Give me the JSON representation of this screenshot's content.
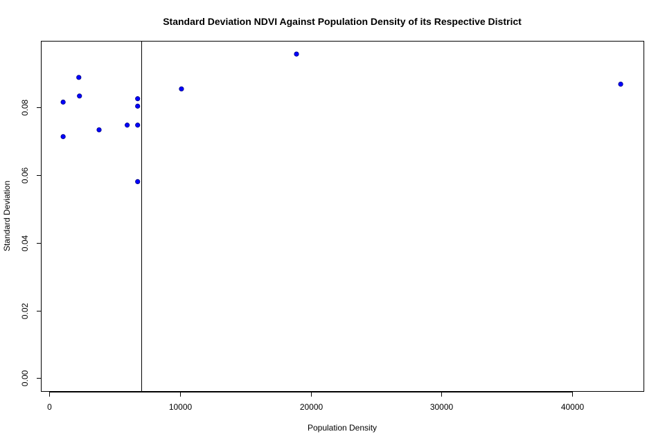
{
  "chart_data": {
    "type": "scatter",
    "title": "Standard Deviation NDVI Against Population Density of its Respective District",
    "xlabel": "Population Density",
    "ylabel": "Standard Deviation",
    "xlim": [
      -600,
      45500
    ],
    "ylim": [
      -0.004,
      0.0995
    ],
    "x_ticks": [
      0,
      10000,
      20000,
      30000,
      40000
    ],
    "x_tick_labels": [
      "0",
      "10000",
      "20000",
      "30000",
      "40000"
    ],
    "y_ticks": [
      0.0,
      0.02,
      0.04,
      0.06,
      0.08
    ],
    "y_tick_labels": [
      "0.00",
      "0.02",
      "0.04",
      "0.06",
      "0.08"
    ],
    "grid": false,
    "legend": "none",
    "vertical_reference_line_x": 7050,
    "point_color": "#0000ff",
    "point_outline_color": "#000080",
    "series": [
      {
        "x": [
          1050,
          1050,
          2250,
          2300,
          3800,
          5950,
          6750,
          6750,
          6750,
          6750,
          10100,
          18900,
          43700
        ],
        "y": [
          0.0816,
          0.0714,
          0.0889,
          0.0834,
          0.0734,
          0.0748,
          0.0826,
          0.0804,
          0.0748,
          0.0581,
          0.0855,
          0.0958,
          0.0869
        ]
      }
    ]
  }
}
